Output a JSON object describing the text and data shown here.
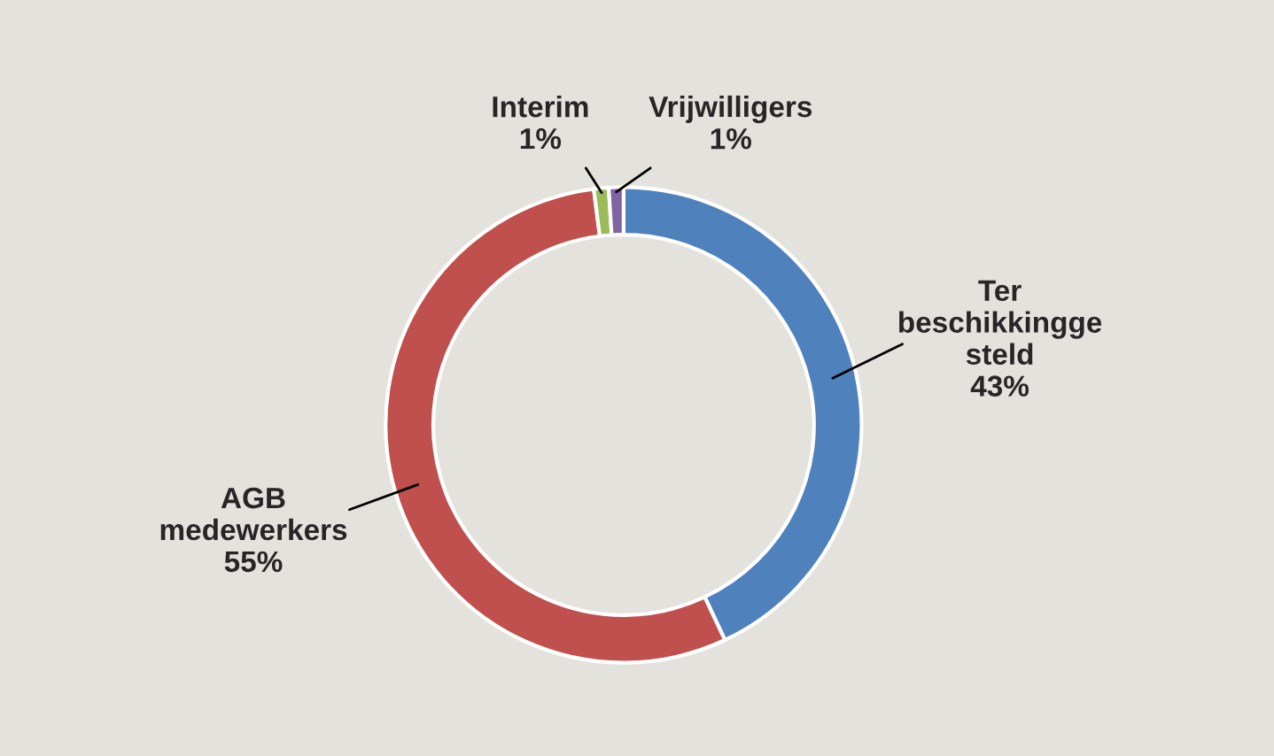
{
  "chart_data": {
    "type": "donut",
    "categories": [
      "Ter\nbeschikkingge\nsteld",
      "AGB\nmedewerkers",
      "Interim",
      "Vrijwilligers"
    ],
    "values": [
      43,
      55,
      1,
      1
    ],
    "colors": [
      "#4f81bd",
      "#c0504d",
      "#9bbb59",
      "#8064a2"
    ],
    "value_labels": [
      "43%",
      "55%",
      "1%",
      "1%"
    ]
  }
}
